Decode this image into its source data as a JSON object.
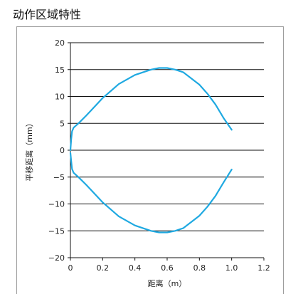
{
  "page": {
    "title": "动作区域特性"
  },
  "chart_data": {
    "type": "line",
    "title": "动作区域特性",
    "xlabel": "距离（m）",
    "ylabel": "平移距离（mm）",
    "xlim": [
      0,
      1.2
    ],
    "ylim": [
      -20,
      20
    ],
    "xticks": [
      0,
      0.2,
      0.4,
      0.6,
      0.8,
      1.0,
      1.2
    ],
    "xtick_labels": [
      "0",
      "0.2",
      "0.4",
      "0.6",
      "0.8",
      "1.0",
      "1.2"
    ],
    "yticks": [
      20,
      15,
      10,
      5,
      0,
      -5,
      -10,
      -15,
      -20
    ],
    "ytick_labels": [
      "20",
      "15",
      "10",
      "5",
      "0",
      "−5",
      "−10",
      "−15",
      "−20"
    ],
    "grid": "horizontal",
    "series_color": "#1fa9e1",
    "series": [
      {
        "x": [
          0.0,
          0.005,
          0.01,
          0.02,
          0.05,
          0.1,
          0.2,
          0.3,
          0.4,
          0.5,
          0.55,
          0.6,
          0.65,
          0.7,
          0.8,
          0.85,
          0.9,
          0.95,
          1.0
        ],
        "y": [
          0.0,
          2.0,
          3.5,
          4.2,
          5.0,
          6.5,
          9.7,
          12.3,
          14.0,
          15.0,
          15.3,
          15.3,
          15.0,
          14.5,
          12.2,
          10.5,
          8.5,
          6.0,
          3.8
        ]
      },
      {
        "x": [
          0.0,
          0.005,
          0.01,
          0.02,
          0.05,
          0.1,
          0.2,
          0.3,
          0.4,
          0.5,
          0.55,
          0.6,
          0.65,
          0.7,
          0.8,
          0.85,
          0.9,
          0.95,
          1.0
        ],
        "y": [
          -0.5,
          -2.0,
          -3.5,
          -4.2,
          -5.0,
          -6.5,
          -9.7,
          -12.3,
          -14.0,
          -15.0,
          -15.3,
          -15.3,
          -15.0,
          -14.5,
          -12.2,
          -10.5,
          -8.5,
          -6.0,
          -3.6
        ]
      }
    ]
  }
}
